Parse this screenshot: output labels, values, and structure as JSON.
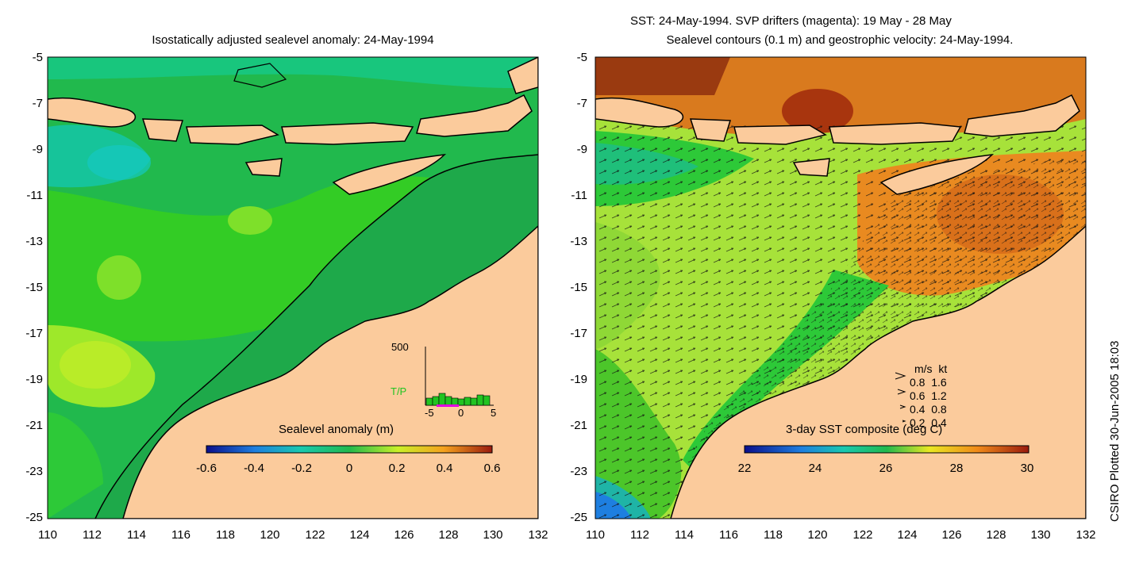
{
  "left_panel": {
    "title": "Isostatically adjusted sealevel anomaly: 24-May-1994",
    "colorbar_label": "Sealevel anomaly (m)",
    "colorbar_ticks": [
      "-0.6",
      "-0.4",
      "-0.2",
      "0",
      "0.2",
      "0.4",
      "0.6"
    ],
    "inset": {
      "ymax_label": "500",
      "series_label": "T/P",
      "x_ticks": [
        "-5",
        "0",
        "5"
      ]
    }
  },
  "right_panel": {
    "title_line1": "SST: 24-May-1994. SVP drifters (magenta): 19 May - 28 May",
    "title_line2": "Sealevel contours (0.1 m) and geostrophic velocity: 24-May-1994.",
    "colorbar_label": "3-day SST composite (deg C)",
    "colorbar_ticks": [
      "22",
      "24",
      "26",
      "28",
      "30"
    ],
    "speed_legend": {
      "header": "m/s  kt",
      "rows": [
        "0.8  1.6",
        "0.6  1.2",
        "0.4  0.8",
        "0.2  0.4"
      ]
    }
  },
  "axes": {
    "y_ticks": [
      "-5",
      "-7",
      "-9",
      "-11",
      "-13",
      "-15",
      "-17",
      "-19",
      "-21",
      "-23",
      "-25"
    ],
    "x_ticks": [
      "110",
      "112",
      "114",
      "116",
      "118",
      "120",
      "122",
      "124",
      "126",
      "128",
      "130",
      "132"
    ]
  },
  "credit": "CSIRO Plotted 30-Jun-2005 18:03",
  "colors": {
    "land": "#fbcb9c",
    "sla_background": "#21b94d",
    "sst_background": "#a7e23a"
  }
}
